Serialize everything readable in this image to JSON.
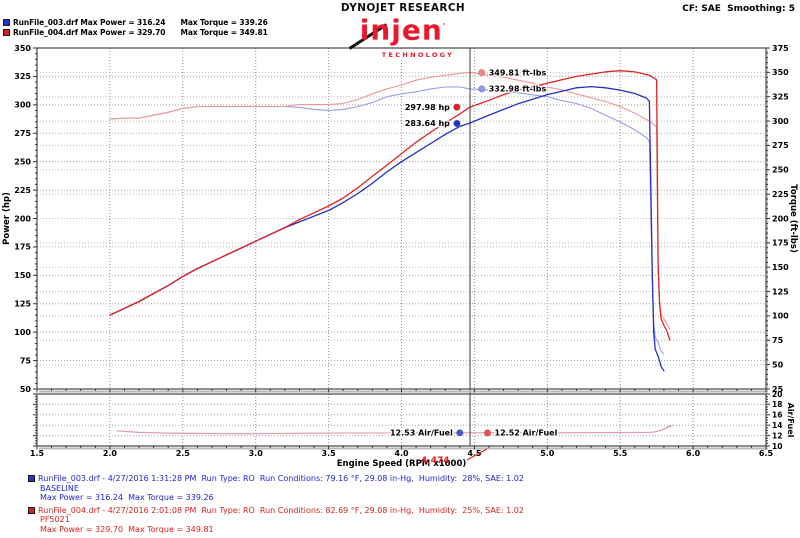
{
  "header": {
    "legend": [
      {
        "text": "RunFile_003.drf Max Power = 316.24      Max Torque = 339.26",
        "color": "#2233cc"
      },
      {
        "text": "RunFile_004.drf Max Power = 329.70      Max Torque = 349.81",
        "color": "#cc2222"
      }
    ],
    "brand_top": "DYNOJET RESEARCH",
    "brand_main": "injen",
    "brand_mark": "'",
    "brand_sub": "TECHNOLOGY",
    "cf_text": "CF: SAE  Smoothing: 5"
  },
  "chart_data": {
    "type": "line",
    "x_axis": {
      "label": "Engine Speed (RPM x1000)",
      "min": 1.5,
      "max": 6.5,
      "major_step": 0.5,
      "minor_step": 0.1
    },
    "y_left": {
      "label": "Power (hp)",
      "min": 50,
      "max": 350,
      "major_step": 25,
      "minor_step": 5
    },
    "y_right": {
      "label": "Torque (ft-lbs)",
      "min": 25,
      "max": 375,
      "major_step": 25,
      "minor_step": 5
    },
    "af_axis": {
      "label": "Air/Fuel",
      "min": 10,
      "max": 20,
      "major_step": 2,
      "minor_step": 0.5
    },
    "grid": true,
    "cursor": {
      "rpm": 4.47,
      "label": "4,474",
      "color": "#e02020"
    },
    "series": [
      {
        "id": "torque-baseline",
        "name": "RunFile_003 Torque",
        "axis": "torque",
        "color": "#98a0e0",
        "width": 1.1,
        "points": [
          [
            2.0,
            302
          ],
          [
            2.1,
            303
          ],
          [
            2.2,
            303
          ],
          [
            2.3,
            306
          ],
          [
            2.4,
            309
          ],
          [
            2.5,
            313
          ],
          [
            2.6,
            315
          ],
          [
            2.7,
            315
          ],
          [
            2.8,
            315
          ],
          [
            2.9,
            315
          ],
          [
            3.0,
            315
          ],
          [
            3.1,
            315
          ],
          [
            3.2,
            315
          ],
          [
            3.3,
            314
          ],
          [
            3.4,
            312
          ],
          [
            3.5,
            311
          ],
          [
            3.6,
            312
          ],
          [
            3.7,
            315
          ],
          [
            3.8,
            319
          ],
          [
            3.9,
            325
          ],
          [
            4.0,
            328
          ],
          [
            4.1,
            330
          ],
          [
            4.2,
            333
          ],
          [
            4.3,
            335
          ],
          [
            4.4,
            335
          ],
          [
            4.47,
            333
          ],
          [
            4.6,
            332
          ],
          [
            4.7,
            331
          ],
          [
            4.8,
            329
          ],
          [
            4.9,
            327
          ],
          [
            5.0,
            325
          ],
          [
            5.1,
            321
          ],
          [
            5.2,
            318
          ],
          [
            5.3,
            313
          ],
          [
            5.4,
            306
          ],
          [
            5.5,
            299
          ],
          [
            5.6,
            291
          ],
          [
            5.68,
            283
          ],
          [
            5.7,
            279
          ],
          [
            5.72,
            138
          ],
          [
            5.73,
            92
          ],
          [
            5.74,
            78
          ],
          [
            5.76,
            73
          ],
          [
            5.78,
            64
          ],
          [
            5.8,
            61
          ]
        ]
      },
      {
        "id": "torque-pf5021",
        "name": "RunFile_004 Torque",
        "axis": "torque",
        "color": "#f09694",
        "width": 1.1,
        "points": [
          [
            2.0,
            302
          ],
          [
            2.1,
            303
          ],
          [
            2.2,
            303
          ],
          [
            2.3,
            306
          ],
          [
            2.4,
            309
          ],
          [
            2.5,
            313
          ],
          [
            2.6,
            315
          ],
          [
            2.7,
            315
          ],
          [
            2.8,
            315
          ],
          [
            2.9,
            315
          ],
          [
            3.0,
            315
          ],
          [
            3.1,
            315
          ],
          [
            3.2,
            315
          ],
          [
            3.3,
            317
          ],
          [
            3.4,
            317
          ],
          [
            3.5,
            317
          ],
          [
            3.6,
            318
          ],
          [
            3.7,
            322
          ],
          [
            3.8,
            328
          ],
          [
            3.9,
            333
          ],
          [
            4.0,
            337
          ],
          [
            4.1,
            342
          ],
          [
            4.2,
            345
          ],
          [
            4.3,
            347
          ],
          [
            4.4,
            349
          ],
          [
            4.47,
            350
          ],
          [
            4.6,
            347
          ],
          [
            4.7,
            345
          ],
          [
            4.8,
            342
          ],
          [
            4.9,
            339
          ],
          [
            5.0,
            335
          ],
          [
            5.1,
            332
          ],
          [
            5.2,
            328
          ],
          [
            5.3,
            324
          ],
          [
            5.4,
            320
          ],
          [
            5.5,
            315
          ],
          [
            5.6,
            308
          ],
          [
            5.7,
            300
          ],
          [
            5.75,
            294
          ],
          [
            5.76,
            146
          ],
          [
            5.77,
            114
          ],
          [
            5.78,
            102
          ],
          [
            5.8,
            97
          ],
          [
            5.82,
            92
          ],
          [
            5.84,
            86
          ]
        ]
      },
      {
        "id": "power-baseline",
        "name": "RunFile_003 Power",
        "axis": "power",
        "color": "#2030c8",
        "width": 1.3,
        "points": [
          [
            2.0,
            115
          ],
          [
            2.1,
            121
          ],
          [
            2.2,
            127
          ],
          [
            2.3,
            134
          ],
          [
            2.4,
            141
          ],
          [
            2.5,
            149
          ],
          [
            2.6,
            156
          ],
          [
            2.7,
            162
          ],
          [
            2.8,
            168
          ],
          [
            2.9,
            174
          ],
          [
            3.0,
            180
          ],
          [
            3.1,
            186
          ],
          [
            3.2,
            192
          ],
          [
            3.3,
            197
          ],
          [
            3.4,
            202
          ],
          [
            3.5,
            207
          ],
          [
            3.6,
            214
          ],
          [
            3.7,
            222
          ],
          [
            3.8,
            231
          ],
          [
            3.9,
            241
          ],
          [
            4.0,
            250
          ],
          [
            4.1,
            258
          ],
          [
            4.2,
            266
          ],
          [
            4.3,
            274
          ],
          [
            4.4,
            281
          ],
          [
            4.47,
            284
          ],
          [
            4.6,
            291
          ],
          [
            4.7,
            296
          ],
          [
            4.8,
            301
          ],
          [
            4.9,
            305
          ],
          [
            5.0,
            309
          ],
          [
            5.1,
            312
          ],
          [
            5.2,
            315
          ],
          [
            5.3,
            316
          ],
          [
            5.4,
            315
          ],
          [
            5.5,
            313
          ],
          [
            5.6,
            310
          ],
          [
            5.68,
            306
          ],
          [
            5.7,
            303
          ],
          [
            5.72,
            150
          ],
          [
            5.73,
            100
          ],
          [
            5.74,
            85
          ],
          [
            5.76,
            79
          ],
          [
            5.78,
            70
          ],
          [
            5.8,
            66
          ]
        ]
      },
      {
        "id": "power-pf5021",
        "name": "RunFile_004 Power",
        "axis": "power",
        "color": "#e02424",
        "width": 1.3,
        "points": [
          [
            2.0,
            115
          ],
          [
            2.1,
            121
          ],
          [
            2.2,
            127
          ],
          [
            2.3,
            134
          ],
          [
            2.4,
            141
          ],
          [
            2.5,
            149
          ],
          [
            2.6,
            156
          ],
          [
            2.7,
            162
          ],
          [
            2.8,
            168
          ],
          [
            2.9,
            174
          ],
          [
            3.0,
            180
          ],
          [
            3.1,
            186
          ],
          [
            3.2,
            192
          ],
          [
            3.3,
            199
          ],
          [
            3.4,
            205
          ],
          [
            3.5,
            211
          ],
          [
            3.6,
            218
          ],
          [
            3.7,
            227
          ],
          [
            3.8,
            237
          ],
          [
            3.9,
            247
          ],
          [
            4.0,
            257
          ],
          [
            4.1,
            267
          ],
          [
            4.2,
            276
          ],
          [
            4.3,
            284
          ],
          [
            4.4,
            292
          ],
          [
            4.47,
            298
          ],
          [
            4.6,
            304
          ],
          [
            4.7,
            309
          ],
          [
            4.8,
            313
          ],
          [
            4.9,
            316
          ],
          [
            5.0,
            319
          ],
          [
            5.1,
            322
          ],
          [
            5.2,
            325
          ],
          [
            5.3,
            327
          ],
          [
            5.4,
            329
          ],
          [
            5.5,
            330
          ],
          [
            5.6,
            329
          ],
          [
            5.7,
            326
          ],
          [
            5.75,
            322
          ],
          [
            5.76,
            160
          ],
          [
            5.77,
            125
          ],
          [
            5.78,
            112
          ],
          [
            5.8,
            106
          ],
          [
            5.82,
            101
          ],
          [
            5.84,
            93
          ]
        ]
      }
    ],
    "af_series": [
      {
        "id": "af-baseline",
        "name": "RunFile_003 Air/Fuel",
        "color": "#9aa2e2",
        "width": 1.0,
        "points": [
          [
            2.05,
            12.9
          ],
          [
            2.2,
            12.6
          ],
          [
            2.4,
            12.45
          ],
          [
            2.6,
            12.4
          ],
          [
            2.8,
            12.37
          ],
          [
            3.0,
            12.35
          ],
          [
            3.2,
            12.4
          ],
          [
            3.4,
            12.45
          ],
          [
            3.6,
            12.5
          ],
          [
            3.8,
            12.5
          ],
          [
            4.0,
            12.5
          ],
          [
            4.2,
            12.52
          ],
          [
            4.47,
            12.53
          ],
          [
            4.7,
            12.52
          ],
          [
            5.0,
            12.5
          ],
          [
            5.2,
            12.55
          ],
          [
            5.4,
            12.55
          ],
          [
            5.6,
            12.58
          ],
          [
            5.7,
            12.6
          ],
          [
            5.76,
            12.8
          ],
          [
            5.8,
            13.3
          ],
          [
            5.84,
            13.9
          ]
        ]
      },
      {
        "id": "af-pf5021",
        "name": "RunFile_004 Air/Fuel",
        "color": "#f0a09e",
        "width": 1.0,
        "points": [
          [
            2.05,
            12.95
          ],
          [
            2.2,
            12.65
          ],
          [
            2.4,
            12.5
          ],
          [
            2.6,
            12.45
          ],
          [
            2.8,
            12.4
          ],
          [
            3.0,
            12.38
          ],
          [
            3.2,
            12.42
          ],
          [
            3.4,
            12.48
          ],
          [
            3.6,
            12.52
          ],
          [
            3.8,
            12.52
          ],
          [
            4.0,
            12.52
          ],
          [
            4.2,
            12.52
          ],
          [
            4.47,
            12.52
          ],
          [
            4.7,
            12.55
          ],
          [
            5.0,
            12.55
          ],
          [
            5.2,
            12.58
          ],
          [
            5.4,
            12.6
          ],
          [
            5.6,
            12.62
          ],
          [
            5.72,
            12.65
          ],
          [
            5.78,
            13.0
          ],
          [
            5.83,
            13.6
          ],
          [
            5.87,
            14.0
          ]
        ]
      }
    ],
    "annotations": [
      {
        "text": "349.81 ft-lbs",
        "dot_color": "#f08a88",
        "axis": "torque",
        "rpm": 4.55,
        "value": 349.81,
        "side": "right"
      },
      {
        "text": "332.98 ft-lbs",
        "dot_color": "#8e9ae6",
        "axis": "torque",
        "rpm": 4.55,
        "value": 332.98,
        "side": "right"
      },
      {
        "text": "297.98 hp",
        "dot_color": "#e41e1e",
        "axis": "power",
        "rpm": 4.38,
        "value": 297.98,
        "side": "left"
      },
      {
        "text": "283.64 hp",
        "dot_color": "#2233cc",
        "axis": "power",
        "rpm": 4.38,
        "value": 283.64,
        "side": "left"
      }
    ],
    "af_annotations": [
      {
        "text": "12.53 Air/Fuel",
        "dot_color": "#4a55d8",
        "rpm": 4.4,
        "value": 12.53,
        "side": "left"
      },
      {
        "text": "12.52 Air/Fuel",
        "dot_color": "#e85050",
        "rpm": 4.59,
        "value": 12.52,
        "side": "right"
      }
    ]
  },
  "footer": {
    "runs": [
      {
        "color": "#2424cc",
        "line1": "RunFile_003.drf - 4/27/2016 1:31:28 PM  Run Type: RO  Run Conditions: 79.16 °F, 29.08 in-Hg,  Humidity:  28%, SAE: 1.02",
        "line2": "BASELINE",
        "line3": "Max Power = 316.24  Max Torque = 339.26"
      },
      {
        "color": "#d42222",
        "line1": "RunFile_004.drf - 4/27/2016 2:01:08 PM  Run Type: RO  Run Conditions: 82.69 °F, 29.08 in-Hg,  Humidity:  25%, SAE: 1.02",
        "line2": "PF5021",
        "line3": "Max Power = 329.70  Max Torque = 349.81"
      }
    ]
  }
}
